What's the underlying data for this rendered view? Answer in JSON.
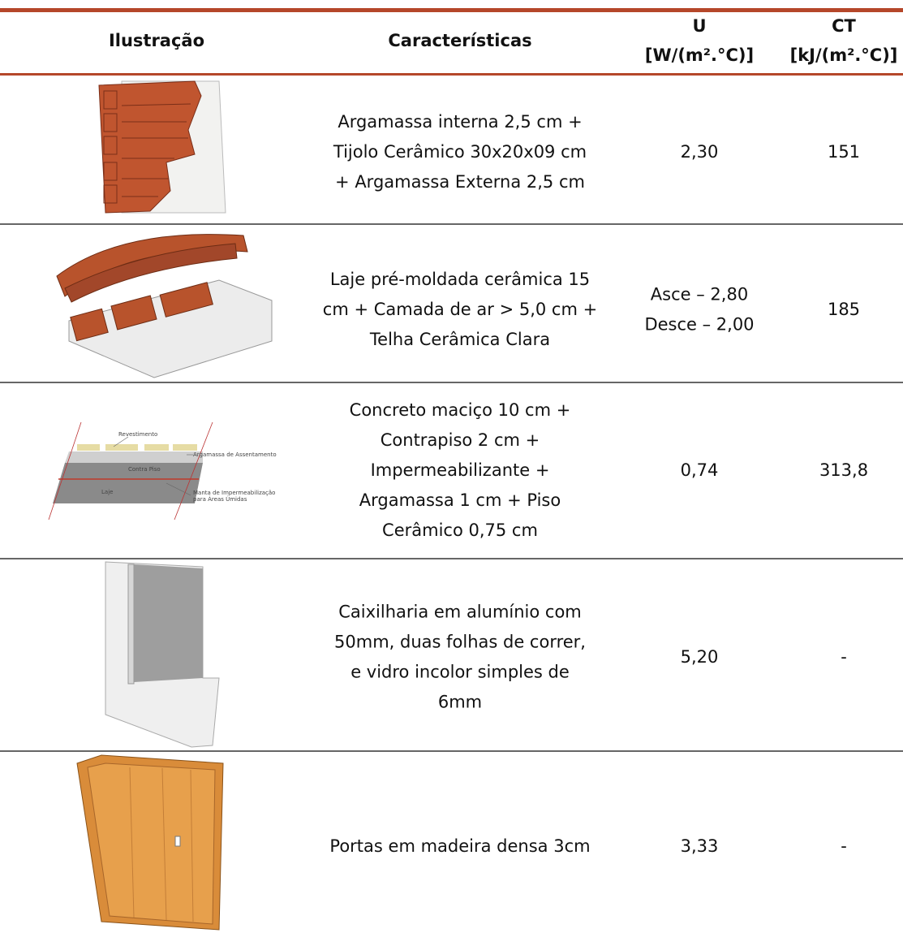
{
  "table": {
    "header": [
      [
        "Ilustração"
      ],
      [
        "Características"
      ],
      [
        "U",
        "[W/(m².°C)]"
      ],
      [
        "CT",
        "[kJ/(m².°C)]"
      ]
    ],
    "rows": [
      {
        "description": [
          "Argamassa interna 2,5 cm +",
          "Tijolo Cerâmico 30x20x09 cm",
          "+ Argamassa Externa 2,5 cm"
        ],
        "u": [
          "2,30"
        ],
        "ct": [
          "151"
        ]
      },
      {
        "description": [
          "Laje pré-moldada cerâmica 15",
          "cm + Camada de ar > 5,0 cm +",
          "Telha Cerâmica Clara"
        ],
        "u": [
          "Asce – 2,80",
          "Desce – 2,00"
        ],
        "ct": [
          "185"
        ]
      },
      {
        "description": [
          "Concreto maciço 10 cm +",
          "Contrapiso 2 cm +",
          "Impermeabilizante +",
          "Argamassa 1 cm + Piso",
          "Cerâmico 0,75 cm"
        ],
        "u": [
          "0,74"
        ],
        "ct": [
          "313,8"
        ],
        "illustration_labels": [
          "Revestimento",
          "Argamassa de Assentamento",
          "Contra Piso",
          "Laje",
          "Manta de Impermeabilização",
          "para Áreas Úmidas"
        ]
      },
      {
        "description": [
          "Caixilharia em alumínio com",
          "50mm, duas folhas de correr,",
          "e vidro incolor simples de",
          "6mm"
        ],
        "u": [
          "5,20"
        ],
        "ct": [
          "-"
        ]
      },
      {
        "description": [
          "Portas em madeira densa 3cm"
        ],
        "u": [
          "3,33"
        ],
        "ct": [
          "-"
        ]
      }
    ]
  }
}
